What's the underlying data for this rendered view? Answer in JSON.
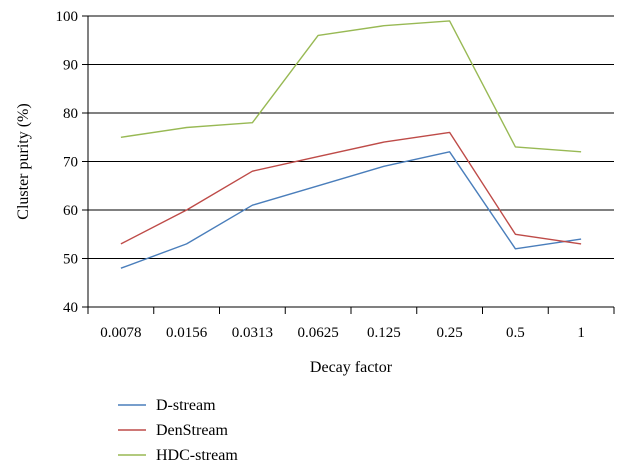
{
  "chart_data": {
    "type": "line",
    "categories": [
      "0.0078",
      "0.0156",
      "0.0313",
      "0.0625",
      "0.125",
      "0.25",
      "0.5",
      "1"
    ],
    "series": [
      {
        "name": "D-stream",
        "color": "#4a7ebb",
        "values": [
          48,
          53,
          61,
          65,
          69,
          72,
          52,
          54
        ]
      },
      {
        "name": "DenStream",
        "color": "#be4b48",
        "values": [
          53,
          60,
          68,
          71,
          74,
          76,
          55,
          53
        ]
      },
      {
        "name": "HDC-stream",
        "color": "#98b954",
        "values": [
          75,
          77,
          78,
          96,
          98,
          99,
          73,
          72
        ]
      }
    ],
    "xlabel": "Decay factor",
    "ylabel": "Cluster purity (%)",
    "ylim": [
      40,
      100
    ],
    "yticks": [
      40,
      50,
      60,
      70,
      80,
      90,
      100
    ],
    "grid": true,
    "legend_position": "bottom-left"
  }
}
